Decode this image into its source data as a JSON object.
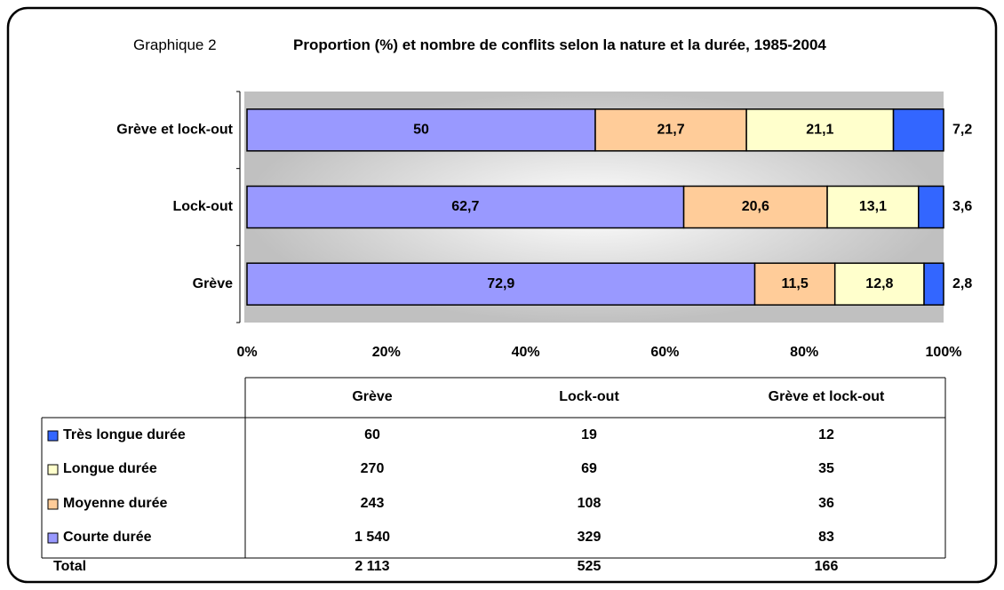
{
  "figure_label": "Graphique 2",
  "chart_data": {
    "type": "stacked_barh",
    "title": "Proportion (%) et nombre de conflits selon la nature et la durée, 1985-2004",
    "categories": [
      "Grève et lock-out",
      "Lock-out",
      "Grève"
    ],
    "series": [
      {
        "name": "Courte durée",
        "color": "#9999ff",
        "values": [
          50,
          62.7,
          72.9
        ],
        "value_labels": [
          "50",
          "62,7",
          "72,9"
        ]
      },
      {
        "name": "Moyenne durée",
        "color": "#ffcc99",
        "values": [
          21.7,
          20.6,
          11.5
        ],
        "value_labels": [
          "21,7",
          "20,6",
          "11,5"
        ]
      },
      {
        "name": "Longue durée",
        "color": "#ffffcc",
        "values": [
          21.1,
          13.1,
          12.8
        ],
        "value_labels": [
          "21,1",
          "13,1",
          "12,8"
        ]
      },
      {
        "name": "Très longue durée",
        "color": "#3366ff",
        "values": [
          7.2,
          3.6,
          2.8
        ],
        "value_labels": [
          "7,2",
          "3,6",
          "2,8"
        ]
      }
    ],
    "xlim": [
      0,
      100
    ],
    "xticks": [
      {
        "value": 0,
        "label": "0%"
      },
      {
        "value": 20,
        "label": "20%"
      },
      {
        "value": 40,
        "label": "40%"
      },
      {
        "value": 60,
        "label": "60%"
      },
      {
        "value": 80,
        "label": "80%"
      },
      {
        "value": 100,
        "label": "100%"
      }
    ]
  },
  "table": {
    "columns": [
      "Grève",
      "Lock-out",
      "Grève et lock-out"
    ],
    "rows": [
      {
        "label": "Très longue durée",
        "cells": [
          60,
          19,
          12
        ]
      },
      {
        "label": "Longue durée",
        "cells": [
          270,
          69,
          35
        ]
      },
      {
        "label": "Moyenne durée",
        "cells": [
          243,
          108,
          36
        ]
      },
      {
        "label": "Courte durée",
        "cells": [
          "1 540",
          329,
          83
        ]
      }
    ],
    "total": {
      "label": "Total",
      "cells": [
        "2 113",
        525,
        166
      ]
    }
  }
}
